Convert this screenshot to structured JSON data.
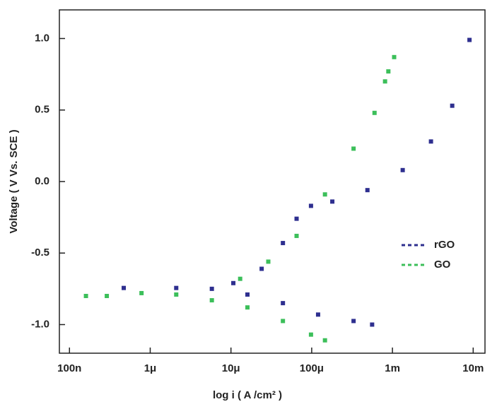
{
  "chart_data": {
    "type": "scatter",
    "xlabel": "log i ( A /cm² )",
    "ylabel": "Voltage ( V Vs. SCE )",
    "xscale": "log",
    "xlim": [
      7.5e-08,
      0.014
    ],
    "ylim": [
      -1.2,
      1.2
    ],
    "xticks": [
      {
        "value": 1e-07,
        "label": "100n"
      },
      {
        "value": 1e-06,
        "label": "1μ"
      },
      {
        "value": 1e-05,
        "label": "10μ"
      },
      {
        "value": 0.0001,
        "label": "100μ"
      },
      {
        "value": 0.001,
        "label": "1m"
      },
      {
        "value": 0.01,
        "label": "10m"
      }
    ],
    "yticks": [
      {
        "value": 1,
        "label": "1.0"
      },
      0.5,
      {
        "value": 0,
        "label": "0.0"
      },
      -0.5,
      {
        "value": -1,
        "label": "-1.0"
      }
    ],
    "legend": "right",
    "series": [
      {
        "name": "rGO",
        "color": "#2e2f8f",
        "x": [
          0.00056,
          0.00033,
          0.00012,
          4.4e-05,
          1.6e-05,
          5.8e-06,
          2.1e-06,
          4.7e-07,
          1.07e-05,
          2.4e-05,
          4.4e-05,
          6.5e-05,
          9.8e-05,
          0.00018,
          0.00049,
          0.00134,
          0.003,
          0.0055,
          0.009
        ],
        "values": [
          -1.0,
          -0.975,
          -0.93,
          -0.85,
          -0.79,
          -0.75,
          -0.744,
          -0.744,
          -0.71,
          -0.61,
          -0.43,
          -0.26,
          -0.17,
          -0.14,
          -0.06,
          0.08,
          0.28,
          0.53,
          0.99
        ]
      },
      {
        "name": "GO",
        "color": "#3cbf5a",
        "x": [
          0.000146,
          9.8e-05,
          4.4e-05,
          1.6e-05,
          5.8e-06,
          2.1e-06,
          7.8e-07,
          2.9e-07,
          1.6e-07,
          1.3e-05,
          2.9e-05,
          6.5e-05,
          0.000146,
          0.00033,
          0.0006,
          0.00081,
          0.00089,
          0.00105
        ],
        "values": [
          -1.11,
          -1.07,
          -0.975,
          -0.88,
          -0.83,
          -0.79,
          -0.78,
          -0.8,
          -0.8,
          -0.68,
          -0.56,
          -0.38,
          -0.09,
          0.23,
          0.48,
          0.7,
          0.77,
          0.87
        ]
      }
    ]
  }
}
